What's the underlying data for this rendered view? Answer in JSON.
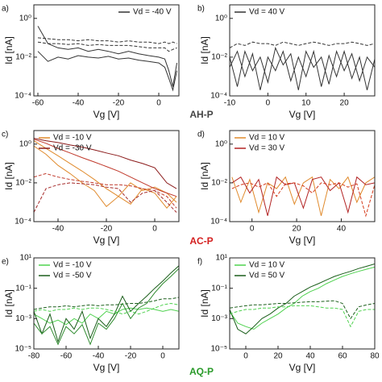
{
  "row_labels": [
    {
      "text": "AH-P",
      "color": "#444444"
    },
    {
      "text": "AC-P",
      "color": "#d42020"
    },
    {
      "text": "AQ-P",
      "color": "#2a9a2a"
    }
  ],
  "chart_data": [
    {
      "type": "line",
      "panel": "a)",
      "xlabel": "Vg [V]",
      "ylabel": "Id [nA]",
      "log_y": true,
      "legend": "upper right",
      "xlim": [
        -62,
        10
      ],
      "xticks": [
        -60,
        -40,
        -20,
        0
      ],
      "ylim": [
        0.0001,
        5
      ],
      "yticks": [
        {
          "value": 1,
          "label": "10⁰"
        },
        {
          "value": 0.01,
          "label": "10⁻²"
        },
        {
          "value": 0.0001,
          "label": "10⁻⁴"
        }
      ],
      "x": [
        -60,
        -55,
        -50,
        -45,
        -40,
        -35,
        -30,
        -25,
        -20,
        -15,
        -10,
        -5,
        0,
        3,
        5,
        7,
        9
      ],
      "series": [
        {
          "color": "#333333",
          "dash": true,
          "values": [
            0.1,
            0.09,
            0.08,
            0.08,
            0.07,
            0.08,
            0.07,
            0.07,
            0.06,
            0.07,
            0.06,
            0.06,
            0.05,
            0.06,
            0.05,
            0.06,
            0.05
          ]
        },
        {
          "color": "#333333",
          "dash": true,
          "values": [
            0.06,
            0.05,
            0.05,
            0.045,
            0.05,
            0.04,
            0.045,
            0.04,
            0.04,
            0.04,
            0.035,
            0.03,
            0.03,
            0.03,
            0.02,
            0.025,
            0.03
          ]
        },
        {
          "name": "Vd = -40 V",
          "color": "#333333",
          "dash": false,
          "values": [
            0.4,
            0.05,
            0.03,
            0.025,
            0.03,
            0.02,
            0.025,
            0.02,
            0.015,
            0.02,
            0.015,
            0.012,
            0.01,
            0.008,
            0.002,
            0.0003,
            0.005
          ]
        },
        {
          "color": "#333333",
          "dash": false,
          "values": [
            0.02,
            0.006,
            0.01,
            0.008,
            0.012,
            0.01,
            0.009,
            0.011,
            0.008,
            0.009,
            0.007,
            0.006,
            0.005,
            0.003,
            0.0008,
            0.0002,
            0.002
          ]
        }
      ]
    },
    {
      "type": "line",
      "panel": "b)",
      "xlabel": "Vg [V]",
      "ylabel": "Id [nA]",
      "log_y": true,
      "legend": "upper left",
      "xlim": [
        -10,
        28
      ],
      "xticks": [
        -10,
        0,
        10,
        20
      ],
      "ylim": [
        0.0001,
        5
      ],
      "yticks": [
        {
          "value": 1,
          "label": "10⁰"
        },
        {
          "value": 0.01,
          "label": "10⁻²"
        },
        {
          "value": 0.0001,
          "label": "10⁻⁴"
        }
      ],
      "x": [
        -10,
        -8,
        -6,
        -4,
        -2,
        0,
        2,
        4,
        6,
        8,
        10,
        12,
        14,
        16,
        18,
        20,
        22,
        24,
        26,
        28
      ],
      "series": [
        {
          "color": "#333333",
          "dash": true,
          "values": [
            0.03,
            0.05,
            0.04,
            0.06,
            0.05,
            0.05,
            0.04,
            0.06,
            0.05,
            0.04,
            0.05,
            0.06,
            0.05,
            0.04,
            0.05,
            0.05,
            0.06,
            0.05,
            0.04,
            0.05
          ]
        },
        {
          "name": "Vd = 40 V",
          "color": "#333333",
          "dash": false,
          "values": [
            0.01,
            0.0003,
            0.02,
            0.002,
            0.01,
            0.0005,
            0.03,
            0.004,
            0.015,
            0.0002,
            0.02,
            0.003,
            0.01,
            0.0004,
            0.02,
            0.002,
            0.015,
            0.0006,
            0.01,
            0.003
          ]
        },
        {
          "color": "#333333",
          "dash": false,
          "values": [
            0.003,
            0.02,
            0.001,
            0.015,
            0.0002,
            0.01,
            0.002,
            0.02,
            0.0006,
            0.01,
            0.001,
            0.02,
            0.0003,
            0.012,
            0.001,
            0.02,
            0.0008,
            0.01,
            0.0002,
            0.008
          ]
        }
      ]
    },
    {
      "type": "line",
      "panel": "c)",
      "xlabel": "Vg [V]",
      "ylabel": "Id [nA]",
      "log_y": true,
      "legend": "upper left",
      "xlim": [
        -50,
        10
      ],
      "xticks": [
        -40,
        -20,
        0
      ],
      "ylim": [
        0.0001,
        5
      ],
      "yticks": [
        {
          "value": 1,
          "label": "10⁰"
        },
        {
          "value": 0.01,
          "label": "10⁻²"
        },
        {
          "value": 0.0001,
          "label": "10⁻⁴"
        }
      ],
      "x": [
        -50,
        -45,
        -40,
        -35,
        -30,
        -25,
        -20,
        -15,
        -10,
        -5,
        0,
        5,
        9
      ],
      "series": [
        {
          "name": "Vd = -10 V",
          "color": "#e08a2c",
          "dash": false,
          "values": [
            1.5,
            0.6,
            0.25,
            0.1,
            0.04,
            0.015,
            0.005,
            0.002,
            0.0008,
            0.005,
            0.003,
            0.0005,
            0.002
          ]
        },
        {
          "name": "Vd = -30 V",
          "color": "#8b1a1a",
          "dash": false,
          "values": [
            2,
            1.5,
            1.2,
            0.9,
            0.7,
            0.5,
            0.35,
            0.25,
            0.15,
            0.1,
            0.06,
            0.01,
            0.005
          ]
        },
        {
          "color": "#e08a2c",
          "dash": false,
          "values": [
            0.8,
            0.3,
            0.08,
            0.03,
            0.01,
            0.004,
            0.0006,
            0.002,
            0.01,
            0.004,
            0.006,
            0.003,
            0.001
          ]
        },
        {
          "color": "#c0392b",
          "dash": false,
          "values": [
            1.8,
            1.1,
            0.6,
            0.35,
            0.2,
            0.12,
            0.07,
            0.04,
            0.02,
            0.01,
            0.005,
            0.003,
            0.002
          ]
        },
        {
          "color": "#c0392b",
          "dash": true,
          "values": [
            0.02,
            0.03,
            0.02,
            0.015,
            0.012,
            0.01,
            0.008,
            0.008,
            0.007,
            0.005,
            0.004,
            0.002,
            0.0005
          ]
        },
        {
          "color": "#a52a2a",
          "dash": true,
          "values": [
            0.0003,
            0.005,
            0.008,
            0.01,
            0.009,
            0.008,
            0.006,
            0.005,
            0.001,
            0.003,
            0.004,
            0.001,
            0.0003
          ]
        }
      ]
    },
    {
      "type": "line",
      "panel": "d)",
      "xlabel": "Vg [V]",
      "ylabel": "Id [nA]",
      "log_y": true,
      "legend": "upper left",
      "xlim": [
        -10,
        55
      ],
      "xticks": [
        0,
        20,
        40
      ],
      "ylim": [
        0.0001,
        5
      ],
      "yticks": [
        {
          "value": 1,
          "label": "10⁰"
        },
        {
          "value": 0.01,
          "label": "10⁻²"
        },
        {
          "value": 0.0001,
          "label": "10⁻⁴"
        }
      ],
      "x": [
        -9,
        -5,
        -1,
        3,
        7,
        11,
        15,
        19,
        23,
        27,
        31,
        35,
        39,
        43,
        47,
        51,
        55
      ],
      "series": [
        {
          "name": "Vd = 10 V",
          "color": "#e08a2c",
          "dash": false,
          "values": [
            0.02,
            0.001,
            0.015,
            0.0003,
            0.01,
            0.005,
            0.02,
            0.0008,
            0.01,
            0.02,
            0.0002,
            0.015,
            0.005,
            0.02,
            0.001,
            0.01,
            0.02
          ]
        },
        {
          "name": "Vd = 30 V",
          "color": "#b22222",
          "dash": false,
          "values": [
            0.01,
            0.02,
            0.003,
            0.015,
            0.0002,
            0.02,
            0.008,
            0.01,
            0.0005,
            0.015,
            0.02,
            0.004,
            0.01,
            0.0003,
            0.02,
            0.008,
            0.01
          ]
        },
        {
          "color": "#d43a1a",
          "dash": true,
          "values": [
            0.005,
            0.008,
            0.01,
            0.006,
            0.01,
            0.002,
            0.009,
            0.01,
            0.007,
            0.003,
            0.01,
            0.008,
            0.01,
            0.006,
            0.009,
            0.0002,
            0.008
          ]
        }
      ]
    },
    {
      "type": "line",
      "panel": "e)",
      "xlabel": "Vg [V]",
      "ylabel": "Id [nA]",
      "log_y": true,
      "legend": "upper left",
      "xlim": [
        -80,
        10
      ],
      "xticks": [
        -80,
        -60,
        -40,
        -20,
        0
      ],
      "ylim": [
        1e-05,
        10
      ],
      "yticks": [
        {
          "value": 10,
          "label": "10¹"
        },
        {
          "value": 0.1,
          "label": "10⁻¹"
        },
        {
          "value": 0.001,
          "label": "10⁻³"
        },
        {
          "value": 1e-05,
          "label": "10⁻⁵"
        }
      ],
      "x": [
        -80,
        -75,
        -70,
        -65,
        -60,
        -55,
        -50,
        -45,
        -40,
        -35,
        -30,
        -25,
        -20,
        -15,
        -10,
        -5,
        0,
        5,
        10
      ],
      "series": [
        {
          "name": "Vd = -10 V",
          "color": "#4fd24f",
          "dash": false,
          "values": [
            0.002,
            0.001,
            0.0005,
            0.0008,
            0.0004,
            0.001,
            0.0005,
            0.002,
            0.001,
            0.003,
            0.002,
            0.004,
            0.005,
            0.004,
            0.005,
            0.004,
            0.003,
            0.004,
            0.003
          ]
        },
        {
          "name": "Vd = -50 V",
          "color": "#1a5e1a",
          "dash": false,
          "values": [
            0.003,
            0.0001,
            0.002,
            3e-05,
            0.001,
            0.0002,
            0.003,
            5e-05,
            0.001,
            0.0003,
            0.002,
            0.03,
            0.003,
            0.01,
            0.03,
            0.1,
            0.3,
            1,
            3
          ]
        },
        {
          "color": "#4fd24f",
          "dash": true,
          "values": [
            0.003,
            0.004,
            0.003,
            0.004,
            0.004,
            0.005,
            0.004,
            0.005,
            0.005,
            0.004,
            0.003,
            0.002,
            0.003,
            0.002,
            0.003,
            0.005,
            0.008,
            0.01,
            0.008
          ]
        },
        {
          "color": "#1a5e1a",
          "dash": true,
          "values": [
            0.004,
            0.005,
            0.006,
            0.006,
            0.007,
            0.006,
            0.007,
            0.008,
            0.007,
            0.008,
            0.008,
            0.009,
            0.01,
            0.01,
            0.012,
            0.015,
            0.02,
            0.02,
            0.025
          ]
        },
        {
          "color": "#2e8b2e",
          "dash": false,
          "values": [
            0.0005,
            0.0001,
            0.0003,
            2e-05,
            0.0003,
            0.0001,
            0.0004,
            2e-05,
            0.0005,
            0.0002,
            0.001,
            0.01,
            0.001,
            0.005,
            0.01,
            0.05,
            0.2,
            0.6,
            2
          ]
        }
      ]
    },
    {
      "type": "line",
      "panel": "f)",
      "xlabel": "Vg [V]",
      "ylabel": "Id [nA]",
      "log_y": true,
      "legend": "upper left",
      "xlim": [
        -10,
        80
      ],
      "xticks": [
        0,
        20,
        40,
        60,
        80
      ],
      "ylim": [
        1e-05,
        10
      ],
      "yticks": [
        {
          "value": 10,
          "label": "10¹"
        },
        {
          "value": 0.1,
          "label": "10⁻¹"
        },
        {
          "value": 0.001,
          "label": "10⁻³"
        },
        {
          "value": 1e-05,
          "label": "10⁻⁵"
        }
      ],
      "x": [
        -10,
        -5,
        0,
        5,
        10,
        15,
        20,
        25,
        30,
        35,
        40,
        45,
        50,
        55,
        60,
        65,
        70,
        75,
        80
      ],
      "series": [
        {
          "name": "Vd = 10 V",
          "color": "#4fd24f",
          "dash": false,
          "values": [
            0.003,
            0.0005,
            0.0003,
            0.0002,
            0.0005,
            0.001,
            0.002,
            0.005,
            0.01,
            0.03,
            0.06,
            0.1,
            0.2,
            0.35,
            0.6,
            0.9,
            1.3,
            1.8,
            2.5
          ]
        },
        {
          "name": "Vd = 50 V",
          "color": "#1a5e1a",
          "dash": false,
          "values": [
            0.004,
            0.0002,
            0.0001,
            0.0003,
            0.001,
            0.002,
            0.005,
            0.01,
            0.03,
            0.06,
            0.12,
            0.2,
            0.35,
            0.6,
            0.9,
            1.3,
            2,
            2.8,
            4
          ]
        },
        {
          "color": "#4fd24f",
          "dash": true,
          "values": [
            0.002,
            0.003,
            0.004,
            0.004,
            0.005,
            0.005,
            0.006,
            0.006,
            0.007,
            0.007,
            0.007,
            0.006,
            0.005,
            0.005,
            0.004,
            0.0003,
            0.003,
            0.004,
            0.004
          ]
        },
        {
          "color": "#1a5e1a",
          "dash": true,
          "values": [
            0.005,
            0.006,
            0.007,
            0.008,
            0.008,
            0.009,
            0.01,
            0.01,
            0.011,
            0.012,
            0.013,
            0.013,
            0.014,
            0.015,
            0.01,
            0.001,
            0.006,
            0.008,
            0.01
          ]
        }
      ]
    }
  ]
}
